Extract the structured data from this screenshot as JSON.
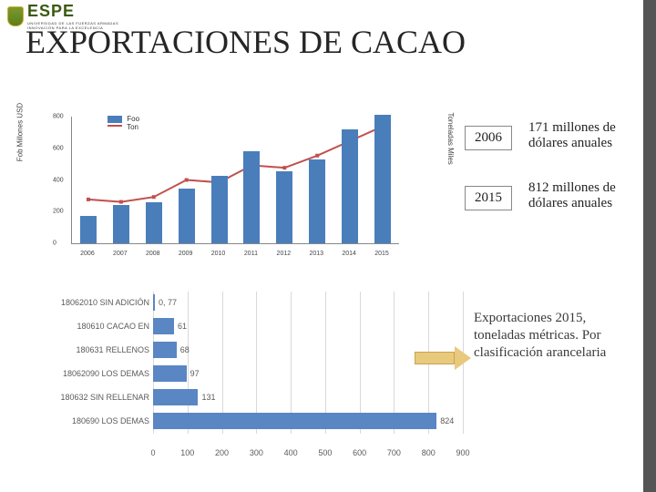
{
  "logo": {
    "text": "ESPE",
    "sub1": "UNIVERSIDAD DE LAS FUERZAS ARMADAS",
    "sub2": "INNOVACIÓN PARA LA EXCELENCIA"
  },
  "title": "EXPORTACIONES DE CACAO",
  "top_chart": {
    "type": "bar+line",
    "legend": {
      "bar": "Foo",
      "line": "Ton",
      "bar_color": "#4a7ebb",
      "line_color": "#c0504d"
    },
    "y_left": {
      "label": "Fob Millones USD",
      "ticks": [
        0,
        200,
        400,
        600,
        800
      ],
      "max": 800
    },
    "y_right": {
      "label": "Toneladas Miles",
      "ticks": [],
      "max": 260
    },
    "categories": [
      "2006",
      "2007",
      "2008",
      "2009",
      "2010",
      "2011",
      "2012",
      "2013",
      "2014",
      "2015"
    ],
    "bar_values": [
      171,
      240,
      260,
      345,
      425,
      580,
      455,
      530,
      720,
      812
    ],
    "line_values": [
      90,
      85,
      95,
      130,
      125,
      160,
      155,
      180,
      210,
      240
    ],
    "bar_color": "#4a7ebb",
    "line_color": "#c0504d",
    "grid_color": "#d9d9d9"
  },
  "callouts": {
    "y2006": {
      "year": "2006",
      "text": "171 millones de dólares anuales"
    },
    "y2015": {
      "year": "2015",
      "text": "812 millones de dólares anuales"
    }
  },
  "bot_chart": {
    "type": "hbar",
    "x_max": 900,
    "x_ticks": [
      0,
      100,
      200,
      300,
      400,
      500,
      600,
      700,
      800,
      900
    ],
    "bar_color": "#5a86c4",
    "grid_color": "#d9d9d9",
    "rows": [
      {
        "label": "18062010 SIN ADICIÓN",
        "value": 0.77,
        "display": "0, 77"
      },
      {
        "label": "180610 CACAO EN",
        "value": 61,
        "display": "61"
      },
      {
        "label": "180631 RELLENOS",
        "value": 68,
        "display": "68"
      },
      {
        "label": "18062090 LOS DEMAS",
        "value": 97,
        "display": "97"
      },
      {
        "label": "180632 SIN RELLENAR",
        "value": 131,
        "display": "131"
      },
      {
        "label": "180690 LOS DEMAS",
        "value": 824,
        "display": "824"
      }
    ]
  },
  "annotation": "Exportaciones 2015, toneladas métricas. Por clasificación arancelaria",
  "colors": {
    "accent_bar": "#555555",
    "arrow_fill": "#e9c97d",
    "arrow_border": "#caa44f"
  }
}
